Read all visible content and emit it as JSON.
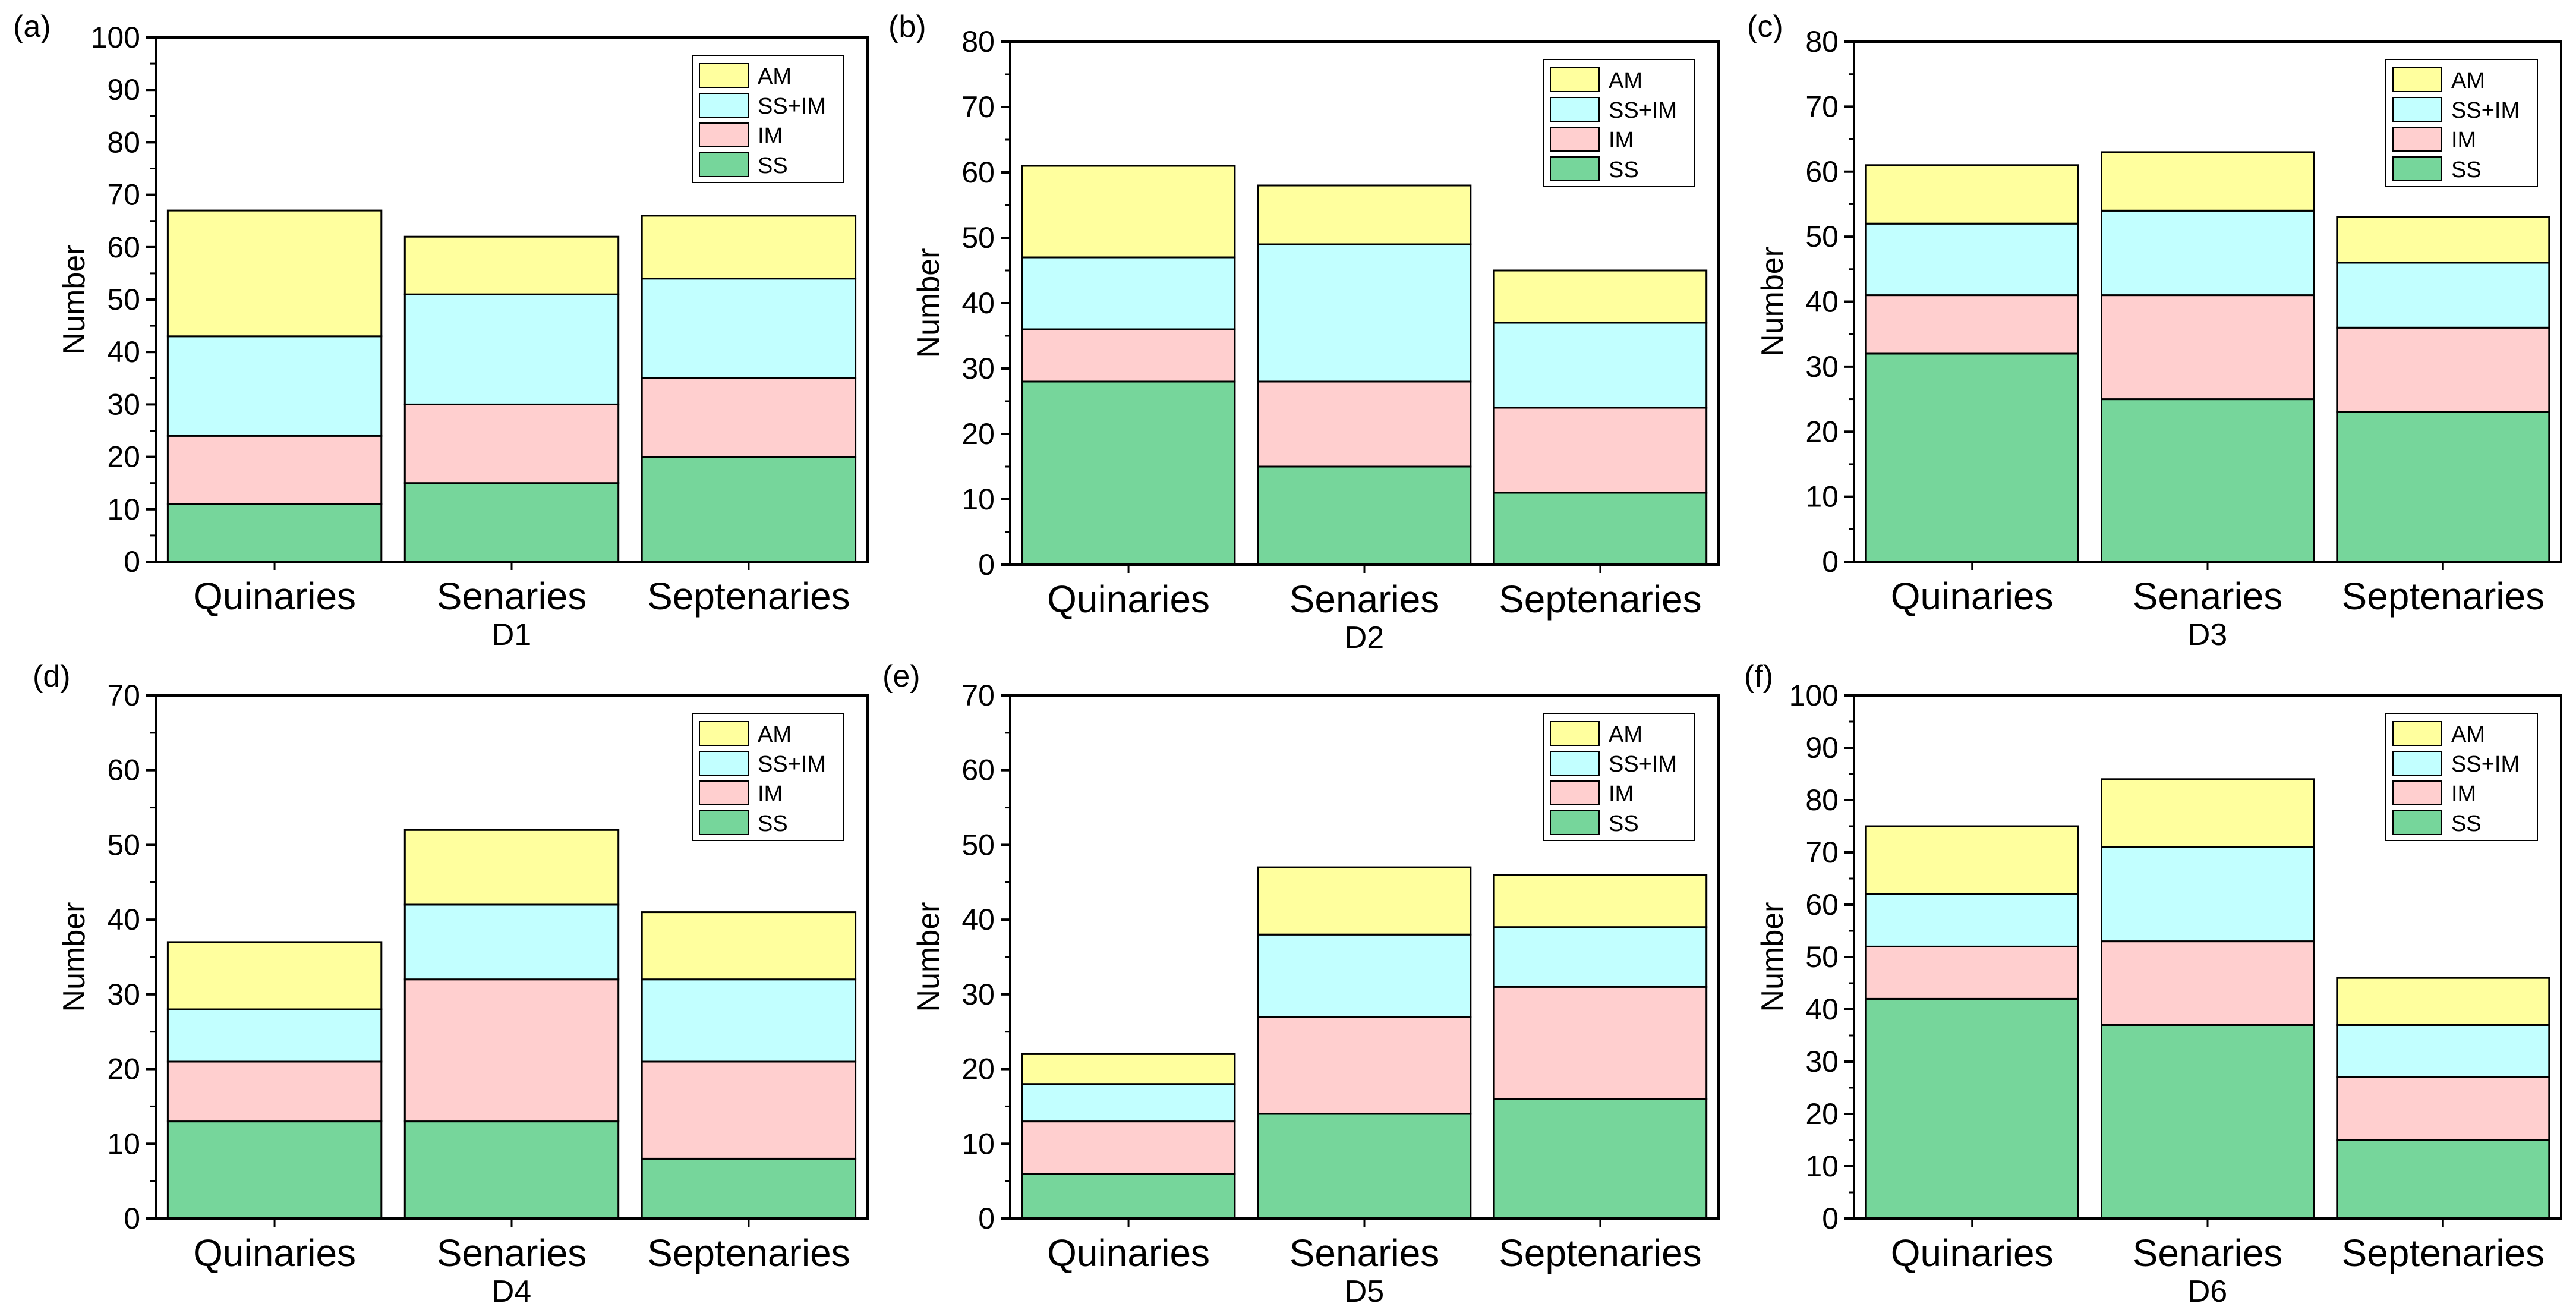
{
  "colors": {
    "SS": "#76d69b",
    "IM": "#ffcfcf",
    "SS+IM": "#c2ffff",
    "AM": "#ffff9e"
  },
  "legend_order": [
    "AM",
    "SS+IM",
    "IM",
    "SS"
  ],
  "chart_data": [
    {
      "type": "bar",
      "stacked": true,
      "panel": "(a)",
      "xlabel": "D1",
      "ylabel": "Number",
      "ylim": [
        0,
        100
      ],
      "yticks": [
        0,
        10,
        20,
        30,
        40,
        50,
        60,
        70,
        80,
        90,
        100
      ],
      "categories": [
        "Quinaries",
        "Senaries",
        "Septenaries"
      ],
      "series": [
        {
          "name": "SS",
          "values": [
            11,
            15,
            20
          ]
        },
        {
          "name": "IM",
          "values": [
            13,
            15,
            15
          ]
        },
        {
          "name": "SS+IM",
          "values": [
            19,
            21,
            19
          ]
        },
        {
          "name": "AM",
          "values": [
            24,
            11,
            12
          ]
        }
      ],
      "legend": [
        "AM",
        "SS+IM",
        "IM",
        "SS"
      ]
    },
    {
      "type": "bar",
      "stacked": true,
      "panel": "(b)",
      "xlabel": "D2",
      "ylabel": "Number",
      "ylim": [
        0,
        80
      ],
      "yticks": [
        0,
        10,
        20,
        30,
        40,
        50,
        60,
        70,
        80
      ],
      "categories": [
        "Quinaries",
        "Senaries",
        "Septenaries"
      ],
      "series": [
        {
          "name": "SS",
          "values": [
            28,
            15,
            11
          ]
        },
        {
          "name": "IM",
          "values": [
            8,
            13,
            13
          ]
        },
        {
          "name": "SS+IM",
          "values": [
            11,
            21,
            13
          ]
        },
        {
          "name": "AM",
          "values": [
            14,
            9,
            8
          ]
        }
      ],
      "legend": [
        "AM",
        "SS+IM",
        "IM",
        "SS"
      ]
    },
    {
      "type": "bar",
      "stacked": true,
      "panel": "(c)",
      "xlabel": "D3",
      "ylabel": "Number",
      "ylim": [
        0,
        80
      ],
      "yticks": [
        0,
        10,
        20,
        30,
        40,
        50,
        60,
        70,
        80
      ],
      "categories": [
        "Quinaries",
        "Senaries",
        "Septenaries"
      ],
      "series": [
        {
          "name": "SS",
          "values": [
            32,
            25,
            23
          ]
        },
        {
          "name": "IM",
          "values": [
            9,
            16,
            13
          ]
        },
        {
          "name": "SS+IM",
          "values": [
            11,
            13,
            10
          ]
        },
        {
          "name": "AM",
          "values": [
            9,
            9,
            7
          ]
        }
      ],
      "legend": [
        "AM",
        "SS+IM",
        "IM",
        "SS"
      ]
    },
    {
      "type": "bar",
      "stacked": true,
      "panel": "(d)",
      "xlabel": "D4",
      "ylabel": "Number",
      "ylim": [
        0,
        70
      ],
      "yticks": [
        0,
        10,
        20,
        30,
        40,
        50,
        60,
        70
      ],
      "categories": [
        "Quinaries",
        "Senaries",
        "Septenaries"
      ],
      "series": [
        {
          "name": "SS",
          "values": [
            13,
            13,
            8
          ]
        },
        {
          "name": "IM",
          "values": [
            8,
            19,
            13
          ]
        },
        {
          "name": "SS+IM",
          "values": [
            7,
            10,
            11
          ]
        },
        {
          "name": "AM",
          "values": [
            9,
            10,
            9
          ]
        }
      ],
      "legend": [
        "AM",
        "SS+IM",
        "IM",
        "SS"
      ]
    },
    {
      "type": "bar",
      "stacked": true,
      "panel": "(e)",
      "xlabel": "D5",
      "ylabel": "Number",
      "ylim": [
        0,
        70
      ],
      "yticks": [
        0,
        10,
        20,
        30,
        40,
        50,
        60,
        70
      ],
      "categories": [
        "Quinaries",
        "Senaries",
        "Septenaries"
      ],
      "series": [
        {
          "name": "SS",
          "values": [
            6,
            14,
            16
          ]
        },
        {
          "name": "IM",
          "values": [
            7,
            13,
            15
          ]
        },
        {
          "name": "SS+IM",
          "values": [
            5,
            11,
            8
          ]
        },
        {
          "name": "AM",
          "values": [
            4,
            9,
            7
          ]
        }
      ],
      "legend": [
        "AM",
        "SS+IM",
        "IM",
        "SS"
      ]
    },
    {
      "type": "bar",
      "stacked": true,
      "panel": "(f)",
      "xlabel": "D6",
      "ylabel": "Number",
      "ylim": [
        0,
        100
      ],
      "yticks": [
        0,
        10,
        20,
        30,
        40,
        50,
        60,
        70,
        80,
        90,
        100
      ],
      "categories": [
        "Quinaries",
        "Senaries",
        "Septenaries"
      ],
      "series": [
        {
          "name": "SS",
          "values": [
            42,
            37,
            15
          ]
        },
        {
          "name": "IM",
          "values": [
            10,
            16,
            12
          ]
        },
        {
          "name": "SS+IM",
          "values": [
            10,
            18,
            10
          ]
        },
        {
          "name": "AM",
          "values": [
            13,
            13,
            9
          ]
        }
      ],
      "legend": [
        "AM",
        "SS+IM",
        "IM",
        "SS"
      ]
    }
  ]
}
